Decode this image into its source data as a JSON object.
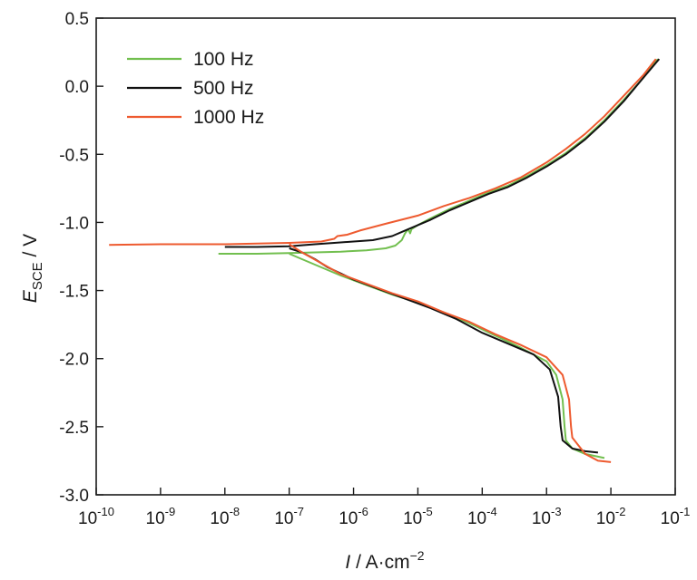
{
  "chart_data": {
    "type": "line",
    "x_scale": "log",
    "xlim_exponents": [
      -10,
      -1
    ],
    "ylim": [
      -3.0,
      0.5
    ],
    "grid": false,
    "legend_position": "top-left",
    "xlabel": {
      "var": "I",
      "rest": " / A·cm",
      "sup": "−2"
    },
    "ylabel": {
      "var": "E",
      "sub": "SCE",
      "rest": " / V"
    },
    "x_ticks": [
      {
        "base": "10",
        "exp": "-10"
      },
      {
        "base": "10",
        "exp": "-9"
      },
      {
        "base": "10",
        "exp": "-8"
      },
      {
        "base": "10",
        "exp": "-7"
      },
      {
        "base": "10",
        "exp": "-6"
      },
      {
        "base": "10",
        "exp": "-5"
      },
      {
        "base": "10",
        "exp": "-4"
      },
      {
        "base": "10",
        "exp": "-3"
      },
      {
        "base": "10",
        "exp": "-2"
      },
      {
        "base": "10",
        "exp": "-1"
      }
    ],
    "x_tick_exponents": [
      -10,
      -9,
      -8,
      -7,
      -6,
      -5,
      -4,
      -3,
      -2,
      -1
    ],
    "y_ticks": [
      "0.5",
      "0.0",
      "-0.5",
      "-1.0",
      "-1.5",
      "-2.0",
      "-2.5",
      "-3.0"
    ],
    "y_tick_values": [
      0.5,
      0.0,
      -0.5,
      -1.0,
      -1.5,
      -2.0,
      -2.5,
      -3.0
    ],
    "series": [
      {
        "name": "100 Hz",
        "color": "#72bf4f",
        "points": [
          [
            -8.1,
            -1.23
          ],
          [
            -7.5,
            -1.23
          ],
          [
            -7.0,
            -1.225
          ],
          [
            -6.6,
            -1.22
          ],
          [
            -6.2,
            -1.215
          ],
          [
            -5.8,
            -1.205
          ],
          [
            -5.5,
            -1.19
          ],
          [
            -5.35,
            -1.17
          ],
          [
            -5.25,
            -1.13
          ],
          [
            -5.2,
            -1.08
          ],
          [
            -5.15,
            -1.05
          ],
          [
            -5.12,
            -1.08
          ],
          [
            -5.1,
            -1.05
          ],
          [
            -5.0,
            -1.02
          ],
          [
            -4.8,
            -0.97
          ],
          [
            -4.5,
            -0.9
          ],
          [
            -4.2,
            -0.84
          ],
          [
            -3.9,
            -0.78
          ],
          [
            -3.6,
            -0.73
          ],
          [
            -3.3,
            -0.66
          ],
          [
            -3.0,
            -0.58
          ],
          [
            -2.7,
            -0.49
          ],
          [
            -2.4,
            -0.38
          ],
          [
            -2.1,
            -0.25
          ],
          [
            -1.8,
            -0.1
          ],
          [
            -1.5,
            0.06
          ],
          [
            -1.27,
            0.2
          ]
        ],
        "points_cathodic": [
          [
            -7.0,
            -1.23
          ],
          [
            -6.8,
            -1.27
          ],
          [
            -6.5,
            -1.33
          ],
          [
            -6.2,
            -1.39
          ],
          [
            -5.8,
            -1.46
          ],
          [
            -5.4,
            -1.53
          ],
          [
            -5.0,
            -1.59
          ],
          [
            -4.6,
            -1.66
          ],
          [
            -4.2,
            -1.74
          ],
          [
            -3.8,
            -1.83
          ],
          [
            -3.4,
            -1.92
          ],
          [
            -3.0,
            -2.02
          ],
          [
            -2.85,
            -2.12
          ],
          [
            -2.75,
            -2.3
          ],
          [
            -2.72,
            -2.5
          ],
          [
            -2.7,
            -2.6
          ],
          [
            -2.6,
            -2.66
          ],
          [
            -2.4,
            -2.7
          ],
          [
            -2.1,
            -2.73
          ]
        ]
      },
      {
        "name": "500 Hz",
        "color": "#111111",
        "points": [
          [
            -8.0,
            -1.18
          ],
          [
            -7.5,
            -1.18
          ],
          [
            -7.0,
            -1.175
          ],
          [
            -6.6,
            -1.16
          ],
          [
            -6.3,
            -1.15
          ],
          [
            -6.0,
            -1.14
          ],
          [
            -5.7,
            -1.13
          ],
          [
            -5.4,
            -1.1
          ],
          [
            -5.2,
            -1.06
          ],
          [
            -5.0,
            -1.02
          ],
          [
            -4.8,
            -0.98
          ],
          [
            -4.5,
            -0.91
          ],
          [
            -4.2,
            -0.85
          ],
          [
            -3.9,
            -0.79
          ],
          [
            -3.6,
            -0.74
          ],
          [
            -3.3,
            -0.67
          ],
          [
            -3.0,
            -0.59
          ],
          [
            -2.7,
            -0.5
          ],
          [
            -2.4,
            -0.39
          ],
          [
            -2.1,
            -0.26
          ],
          [
            -1.8,
            -0.11
          ],
          [
            -1.5,
            0.06
          ],
          [
            -1.25,
            0.2
          ]
        ],
        "points_cathodic": [
          [
            -7.0,
            -1.19
          ],
          [
            -6.8,
            -1.22
          ],
          [
            -6.6,
            -1.27
          ],
          [
            -6.4,
            -1.33
          ],
          [
            -6.0,
            -1.42
          ],
          [
            -5.6,
            -1.49
          ],
          [
            -5.2,
            -1.56
          ],
          [
            -4.8,
            -1.63
          ],
          [
            -4.4,
            -1.71
          ],
          [
            -4.0,
            -1.81
          ],
          [
            -3.6,
            -1.89
          ],
          [
            -3.2,
            -1.97
          ],
          [
            -2.95,
            -2.08
          ],
          [
            -2.82,
            -2.28
          ],
          [
            -2.78,
            -2.5
          ],
          [
            -2.75,
            -2.6
          ],
          [
            -2.6,
            -2.66
          ],
          [
            -2.4,
            -2.68
          ],
          [
            -2.2,
            -2.69
          ]
        ]
      },
      {
        "name": "1000 Hz",
        "color": "#ee5a2f",
        "points": [
          [
            -9.8,
            -1.165
          ],
          [
            -9.0,
            -1.16
          ],
          [
            -8.0,
            -1.16
          ],
          [
            -7.0,
            -1.15
          ],
          [
            -6.5,
            -1.14
          ],
          [
            -6.3,
            -1.12
          ],
          [
            -6.25,
            -1.1
          ],
          [
            -6.1,
            -1.09
          ],
          [
            -5.9,
            -1.06
          ],
          [
            -5.5,
            -1.01
          ],
          [
            -5.0,
            -0.95
          ],
          [
            -4.6,
            -0.88
          ],
          [
            -4.2,
            -0.82
          ],
          [
            -3.8,
            -0.75
          ],
          [
            -3.4,
            -0.67
          ],
          [
            -3.0,
            -0.56
          ],
          [
            -2.7,
            -0.46
          ],
          [
            -2.4,
            -0.35
          ],
          [
            -2.1,
            -0.22
          ],
          [
            -1.8,
            -0.07
          ],
          [
            -1.5,
            0.08
          ],
          [
            -1.3,
            0.2
          ]
        ],
        "points_cathodic": [
          [
            -7.0,
            -1.16
          ],
          [
            -6.8,
            -1.22
          ],
          [
            -6.5,
            -1.3
          ],
          [
            -6.2,
            -1.38
          ],
          [
            -5.8,
            -1.45
          ],
          [
            -5.4,
            -1.52
          ],
          [
            -5.0,
            -1.58
          ],
          [
            -4.6,
            -1.66
          ],
          [
            -4.2,
            -1.73
          ],
          [
            -3.8,
            -1.82
          ],
          [
            -3.4,
            -1.9
          ],
          [
            -3.0,
            -1.99
          ],
          [
            -2.75,
            -2.12
          ],
          [
            -2.65,
            -2.3
          ],
          [
            -2.62,
            -2.5
          ],
          [
            -2.6,
            -2.58
          ],
          [
            -2.4,
            -2.7
          ],
          [
            -2.2,
            -2.75
          ],
          [
            -2.0,
            -2.76
          ]
        ]
      }
    ]
  }
}
